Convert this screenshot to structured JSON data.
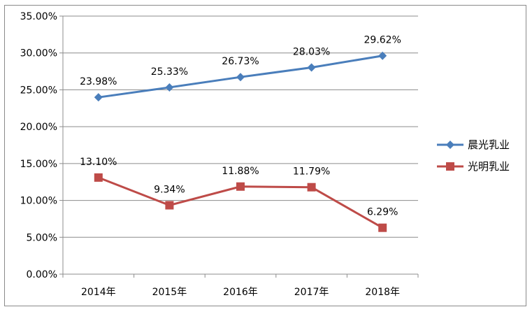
{
  "chart_data": {
    "type": "line",
    "title": "",
    "xlabel": "",
    "ylabel": "",
    "categories": [
      "2014年",
      "2015年",
      "2016年",
      "2017年",
      "2018年"
    ],
    "ylim": [
      0,
      35
    ],
    "yticks": [
      "0.00%",
      "5.00%",
      "10.00%",
      "15.00%",
      "20.00%",
      "25.00%",
      "30.00%",
      "35.00%"
    ],
    "grid": true,
    "legend": "right",
    "series": [
      {
        "name": "晨光乳业",
        "color": "#4a7ebb",
        "marker": "diamond",
        "values": [
          23.98,
          25.33,
          26.73,
          28.03,
          29.62
        ],
        "labels": [
          "23.98%",
          "25.33%",
          "26.73%",
          "28.03%",
          "29.62%"
        ]
      },
      {
        "name": "光明乳业",
        "color": "#be4b48",
        "marker": "square",
        "values": [
          13.1,
          9.34,
          11.88,
          11.79,
          6.29
        ],
        "labels": [
          "13.10%",
          "9.34%",
          "11.88%",
          "11.79%",
          "6.29%"
        ]
      }
    ]
  }
}
